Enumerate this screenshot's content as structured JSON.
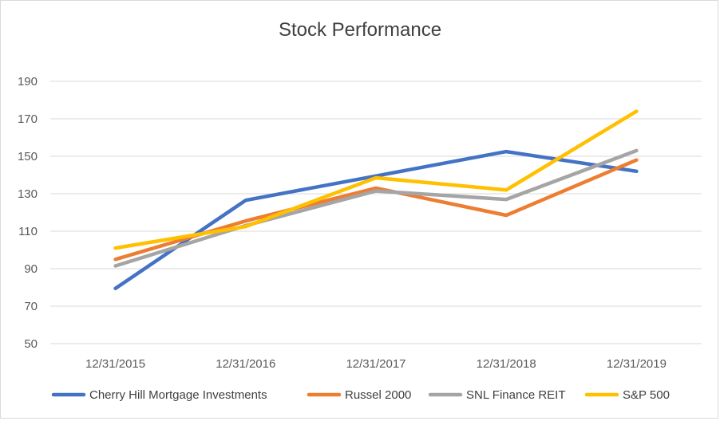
{
  "chart_data": {
    "type": "line",
    "title": "Stock Performance",
    "xlabel": "",
    "ylabel": "",
    "categories": [
      "12/31/2015",
      "12/31/2016",
      "12/31/2017",
      "12/31/2018",
      "12/31/2019"
    ],
    "ylim": [
      50,
      190
    ],
    "yticks": [
      50,
      70,
      90,
      110,
      130,
      150,
      170,
      190
    ],
    "grid": true,
    "legend_position": "bottom",
    "series": [
      {
        "name": "Cherry Hill Mortgage Investments",
        "color": "#4472c4",
        "values": [
          79.5,
          126.5,
          139.5,
          152.5,
          142
        ]
      },
      {
        "name": "Russel 2000",
        "color": "#ed7d31",
        "values": [
          95,
          115.5,
          133,
          118.5,
          148
        ]
      },
      {
        "name": "SNL Finance REIT",
        "color": "#a5a5a5",
        "values": [
          91.5,
          113,
          131.5,
          127,
          153
        ]
      },
      {
        "name": "S&P 500",
        "color": "#ffc000",
        "values": [
          101,
          112.5,
          138.5,
          132,
          174
        ]
      }
    ]
  }
}
